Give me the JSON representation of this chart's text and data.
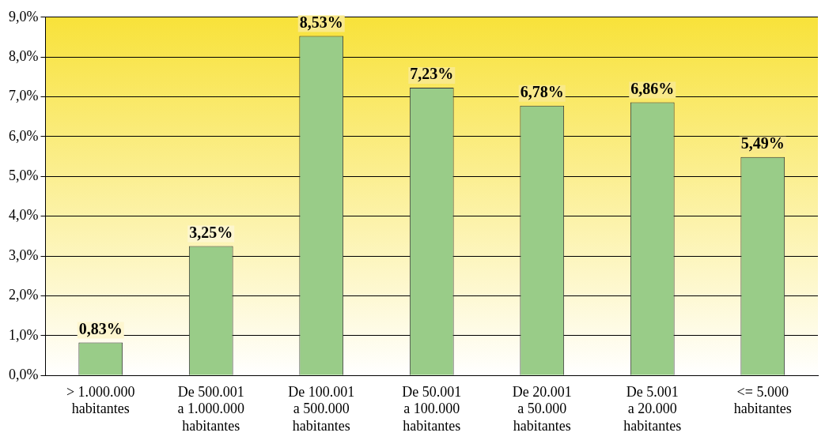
{
  "chart_data": {
    "type": "bar",
    "categories": [
      "> 1.000.000\nhabitantes",
      "De 500.001\na 1.000.000\nhabitantes",
      "De 100.001\na 500.000\nhabitantes",
      "De 50.001\na 100.000\nhabitantes",
      "De 20.001\na 50.000\nhabitantes",
      "De 5.001\na 20.000\nhabitantes",
      "<= 5.000\nhabitantes"
    ],
    "values": [
      0.83,
      3.25,
      8.53,
      7.23,
      6.78,
      6.86,
      5.49
    ],
    "value_labels": [
      "0,83%",
      "3,25%",
      "8,53%",
      "7,23%",
      "6,78%",
      "6,86%",
      "5,49%"
    ],
    "color": "#99cc88",
    "ylim": [
      0,
      9
    ],
    "yticks": [
      {
        "value": 0,
        "label": "0,0%"
      },
      {
        "value": 1,
        "label": "1,0%"
      },
      {
        "value": 2,
        "label": "2,0%"
      },
      {
        "value": 3,
        "label": "3,0%"
      },
      {
        "value": 4,
        "label": "4,0%"
      },
      {
        "value": 5,
        "label": "5,0%"
      },
      {
        "value": 6,
        "label": "6,0%"
      },
      {
        "value": 7,
        "label": "7,0%"
      },
      {
        "value": 8,
        "label": "8,0%"
      },
      {
        "value": 9,
        "label": "9,0%"
      }
    ],
    "grid": "y",
    "legend": false
  }
}
